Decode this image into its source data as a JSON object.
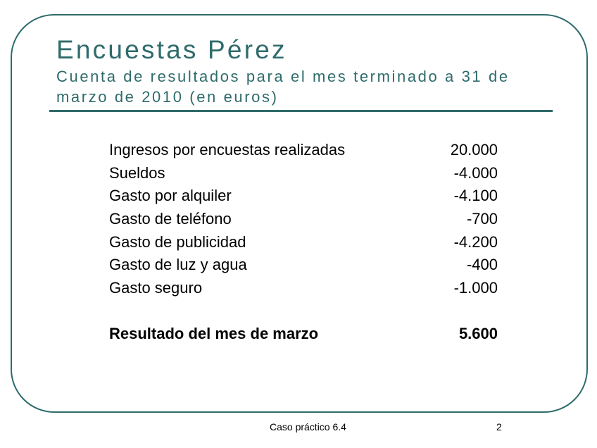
{
  "slide": {
    "title": "Encuestas Pérez",
    "subtitle": "Cuenta de resultados para el mes terminado a 31 de marzo de 2010 (en euros)",
    "accent_color": "#2f6b6b",
    "rows": [
      {
        "label": "Ingresos por encuestas realizadas",
        "value": "20.000"
      },
      {
        "label": "Sueldos",
        "value": "-4.000"
      },
      {
        "label": "Gasto por alquiler",
        "value": "-4.100"
      },
      {
        "label": "Gasto de teléfono",
        "value": "-700"
      },
      {
        "label": "Gasto de publicidad",
        "value": "-4.200"
      },
      {
        "label": "Gasto de luz y agua",
        "value": "-400"
      },
      {
        "label": "Gasto seguro",
        "value": "-1.000"
      }
    ],
    "total": {
      "label": "Resultado del mes de marzo",
      "value": "5.600"
    }
  },
  "footer": {
    "caption": "Caso práctico 6.4",
    "page_number": "2"
  }
}
